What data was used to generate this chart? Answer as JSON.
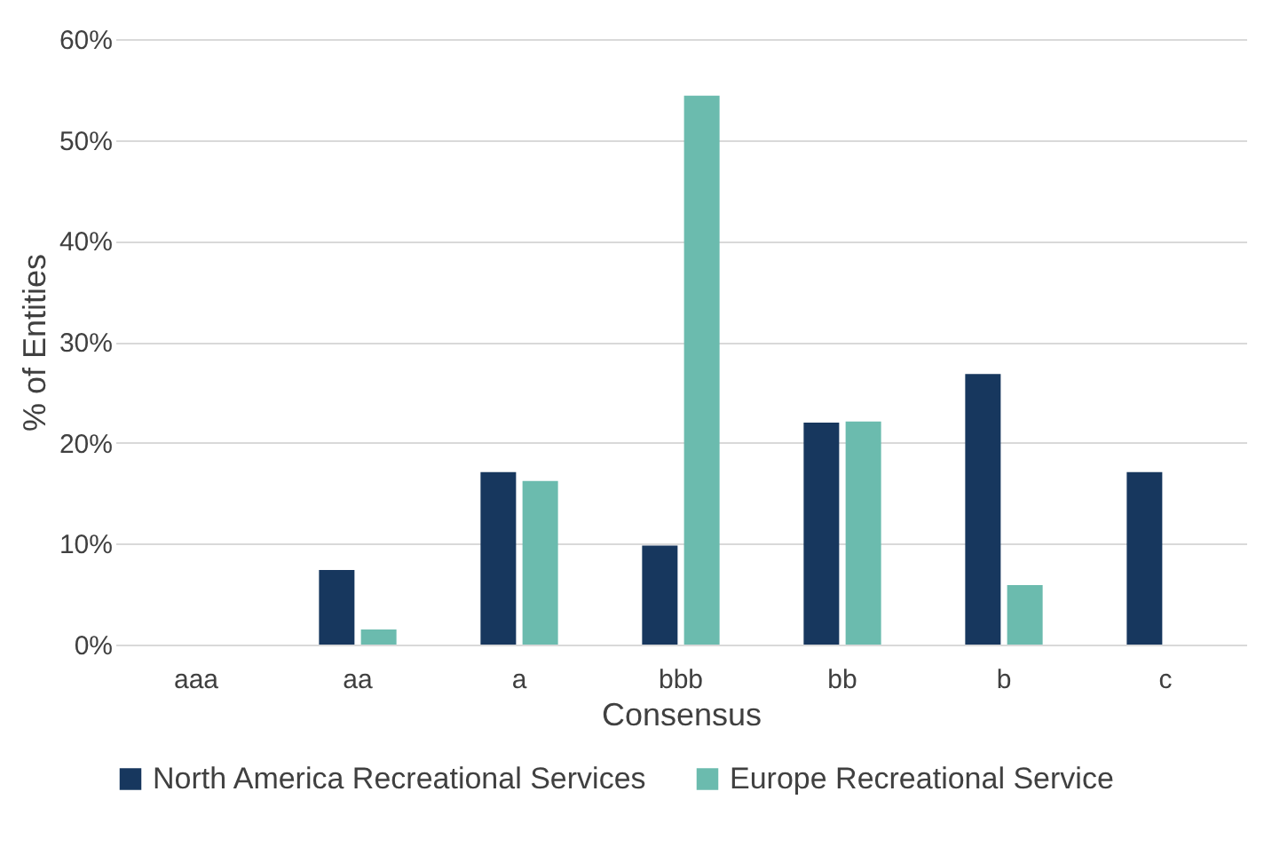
{
  "chart_data": {
    "type": "bar",
    "xlabel": "Consensus",
    "ylabel": "% of Entities",
    "categories": [
      "aaa",
      "aa",
      "a",
      "bbb",
      "bb",
      "b",
      "c"
    ],
    "series": [
      {
        "name": "North America Recreational Services",
        "color": "#17375e",
        "values": [
          0,
          7.4,
          17.1,
          9.8,
          22.0,
          26.8,
          17.1
        ]
      },
      {
        "name": "Europe Recreational Service",
        "color": "#6bbbae",
        "values": [
          0,
          1.5,
          16.2,
          54.4,
          22.1,
          5.9,
          0
        ]
      }
    ],
    "ylim": [
      0,
      60
    ],
    "yticks": [
      {
        "value": 0,
        "label": "0%"
      },
      {
        "value": 10,
        "label": "10%"
      },
      {
        "value": 20,
        "label": "20%"
      },
      {
        "value": 30,
        "label": "30%"
      },
      {
        "value": 40,
        "label": "40%"
      },
      {
        "value": 50,
        "label": "50%"
      },
      {
        "value": 60,
        "label": "60%"
      }
    ],
    "grid": "y",
    "legend": "bottom"
  }
}
